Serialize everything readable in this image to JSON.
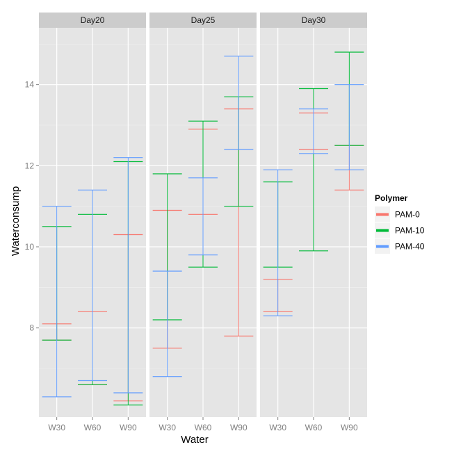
{
  "chart_data": {
    "type": "errorbar",
    "xlabel": "Water",
    "ylabel": "Waterconsump",
    "ylim": [
      5.8,
      15.4
    ],
    "yticks": [
      8,
      10,
      12,
      14
    ],
    "categories": [
      "W30",
      "W60",
      "W90"
    ],
    "legend": {
      "title": "Polymer",
      "position": "right",
      "entries": [
        {
          "name": "PAM-0",
          "color": "#F8766D"
        },
        {
          "name": "PAM-10",
          "color": "#00BA38"
        },
        {
          "name": "PAM-40",
          "color": "#619CFF"
        }
      ]
    },
    "panels": [
      {
        "label": "Day20",
        "series": [
          {
            "name": "PAM-0",
            "color": "#F8766D",
            "bars": [
              [
                7.7,
                8.1
              ],
              [
                6.6,
                8.4
              ],
              [
                6.2,
                10.3
              ]
            ]
          },
          {
            "name": "PAM-10",
            "color": "#00BA38",
            "bars": [
              [
                7.7,
                10.5
              ],
              [
                6.6,
                10.8
              ],
              [
                6.1,
                12.1
              ]
            ]
          },
          {
            "name": "PAM-40",
            "color": "#619CFF",
            "bars": [
              [
                6.3,
                11.0
              ],
              [
                6.7,
                11.4
              ],
              [
                6.4,
                12.2
              ]
            ]
          }
        ]
      },
      {
        "label": "Day25",
        "series": [
          {
            "name": "PAM-0",
            "color": "#F8766D",
            "bars": [
              [
                7.5,
                10.9
              ],
              [
                10.8,
                12.9
              ],
              [
                7.8,
                13.4
              ]
            ]
          },
          {
            "name": "PAM-10",
            "color": "#00BA38",
            "bars": [
              [
                8.2,
                11.8
              ],
              [
                9.5,
                13.1
              ],
              [
                11.0,
                13.7
              ]
            ]
          },
          {
            "name": "PAM-40",
            "color": "#619CFF",
            "bars": [
              [
                6.8,
                9.4
              ],
              [
                9.8,
                11.7
              ],
              [
                12.4,
                14.7
              ]
            ]
          }
        ]
      },
      {
        "label": "Day30",
        "series": [
          {
            "name": "PAM-0",
            "color": "#F8766D",
            "bars": [
              [
                8.4,
                9.2
              ],
              [
                12.4,
                13.3
              ],
              [
                11.4,
                12.5
              ]
            ]
          },
          {
            "name": "PAM-10",
            "color": "#00BA38",
            "bars": [
              [
                9.5,
                11.6
              ],
              [
                9.9,
                13.9
              ],
              [
                12.5,
                14.8
              ]
            ]
          },
          {
            "name": "PAM-40",
            "color": "#619CFF",
            "bars": [
              [
                8.3,
                11.9
              ],
              [
                12.3,
                13.4
              ],
              [
                11.9,
                14.0
              ]
            ]
          }
        ]
      }
    ]
  }
}
